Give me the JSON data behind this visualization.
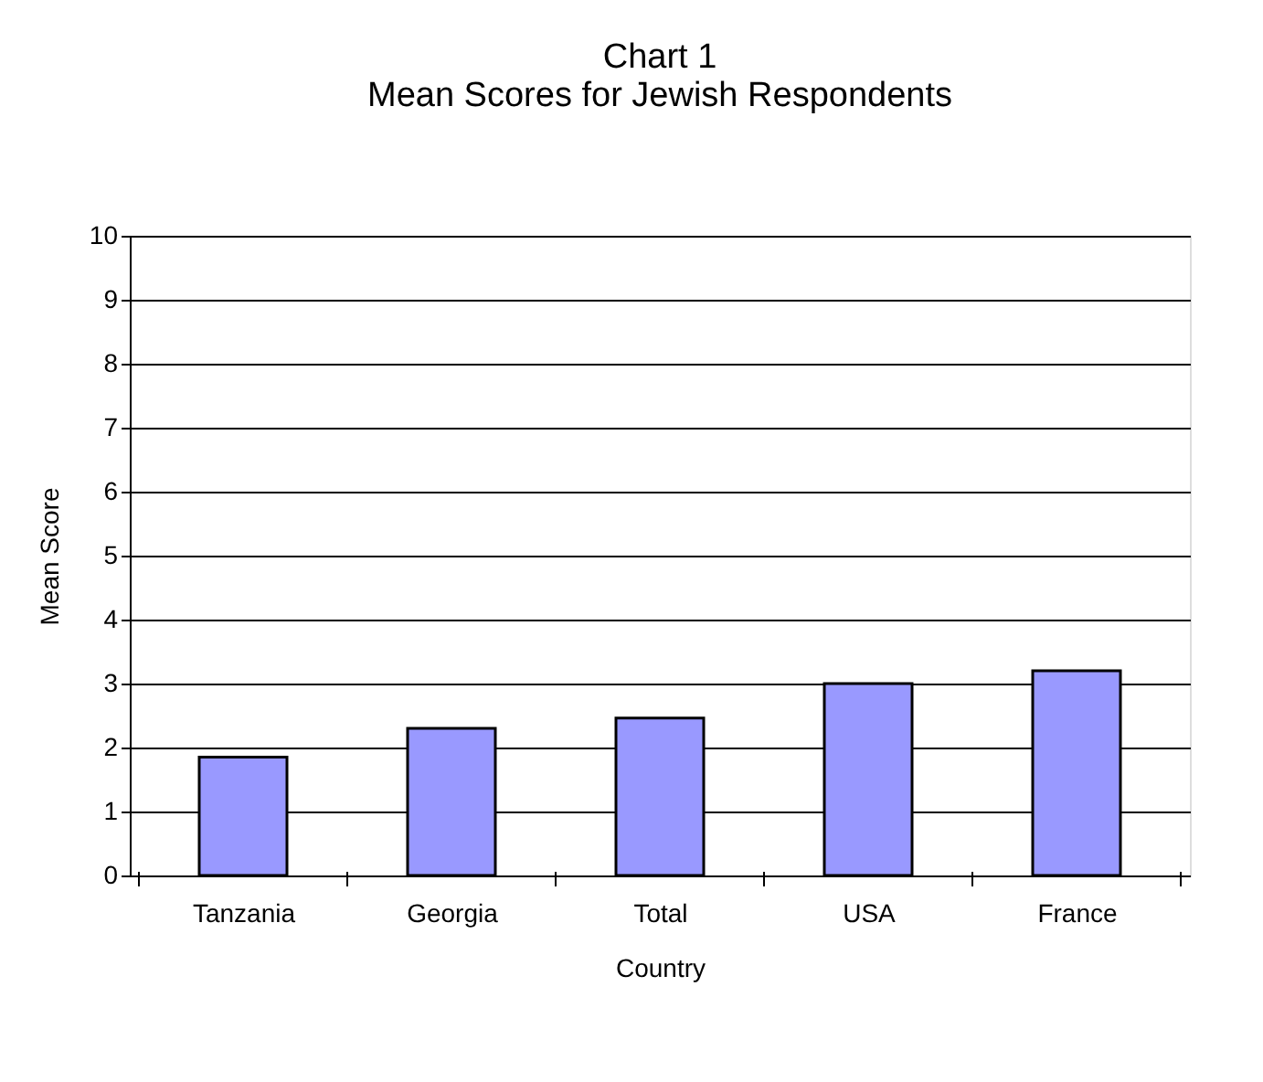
{
  "chart_data": {
    "type": "bar",
    "title": [
      "Chart 1",
      "Mean Scores for Jewish Respondents"
    ],
    "xlabel": "Country",
    "ylabel": "Mean Score",
    "categories": [
      "Tanzania",
      "Georgia",
      "Total",
      "USA",
      "France"
    ],
    "values": [
      1.85,
      2.3,
      2.46,
      3.0,
      3.2
    ],
    "color": "#9999ff",
    "ylim": [
      0,
      10
    ],
    "yticks": [
      0,
      1,
      2,
      3,
      4,
      5,
      6,
      7,
      8,
      9,
      10
    ],
    "grid": "y"
  }
}
